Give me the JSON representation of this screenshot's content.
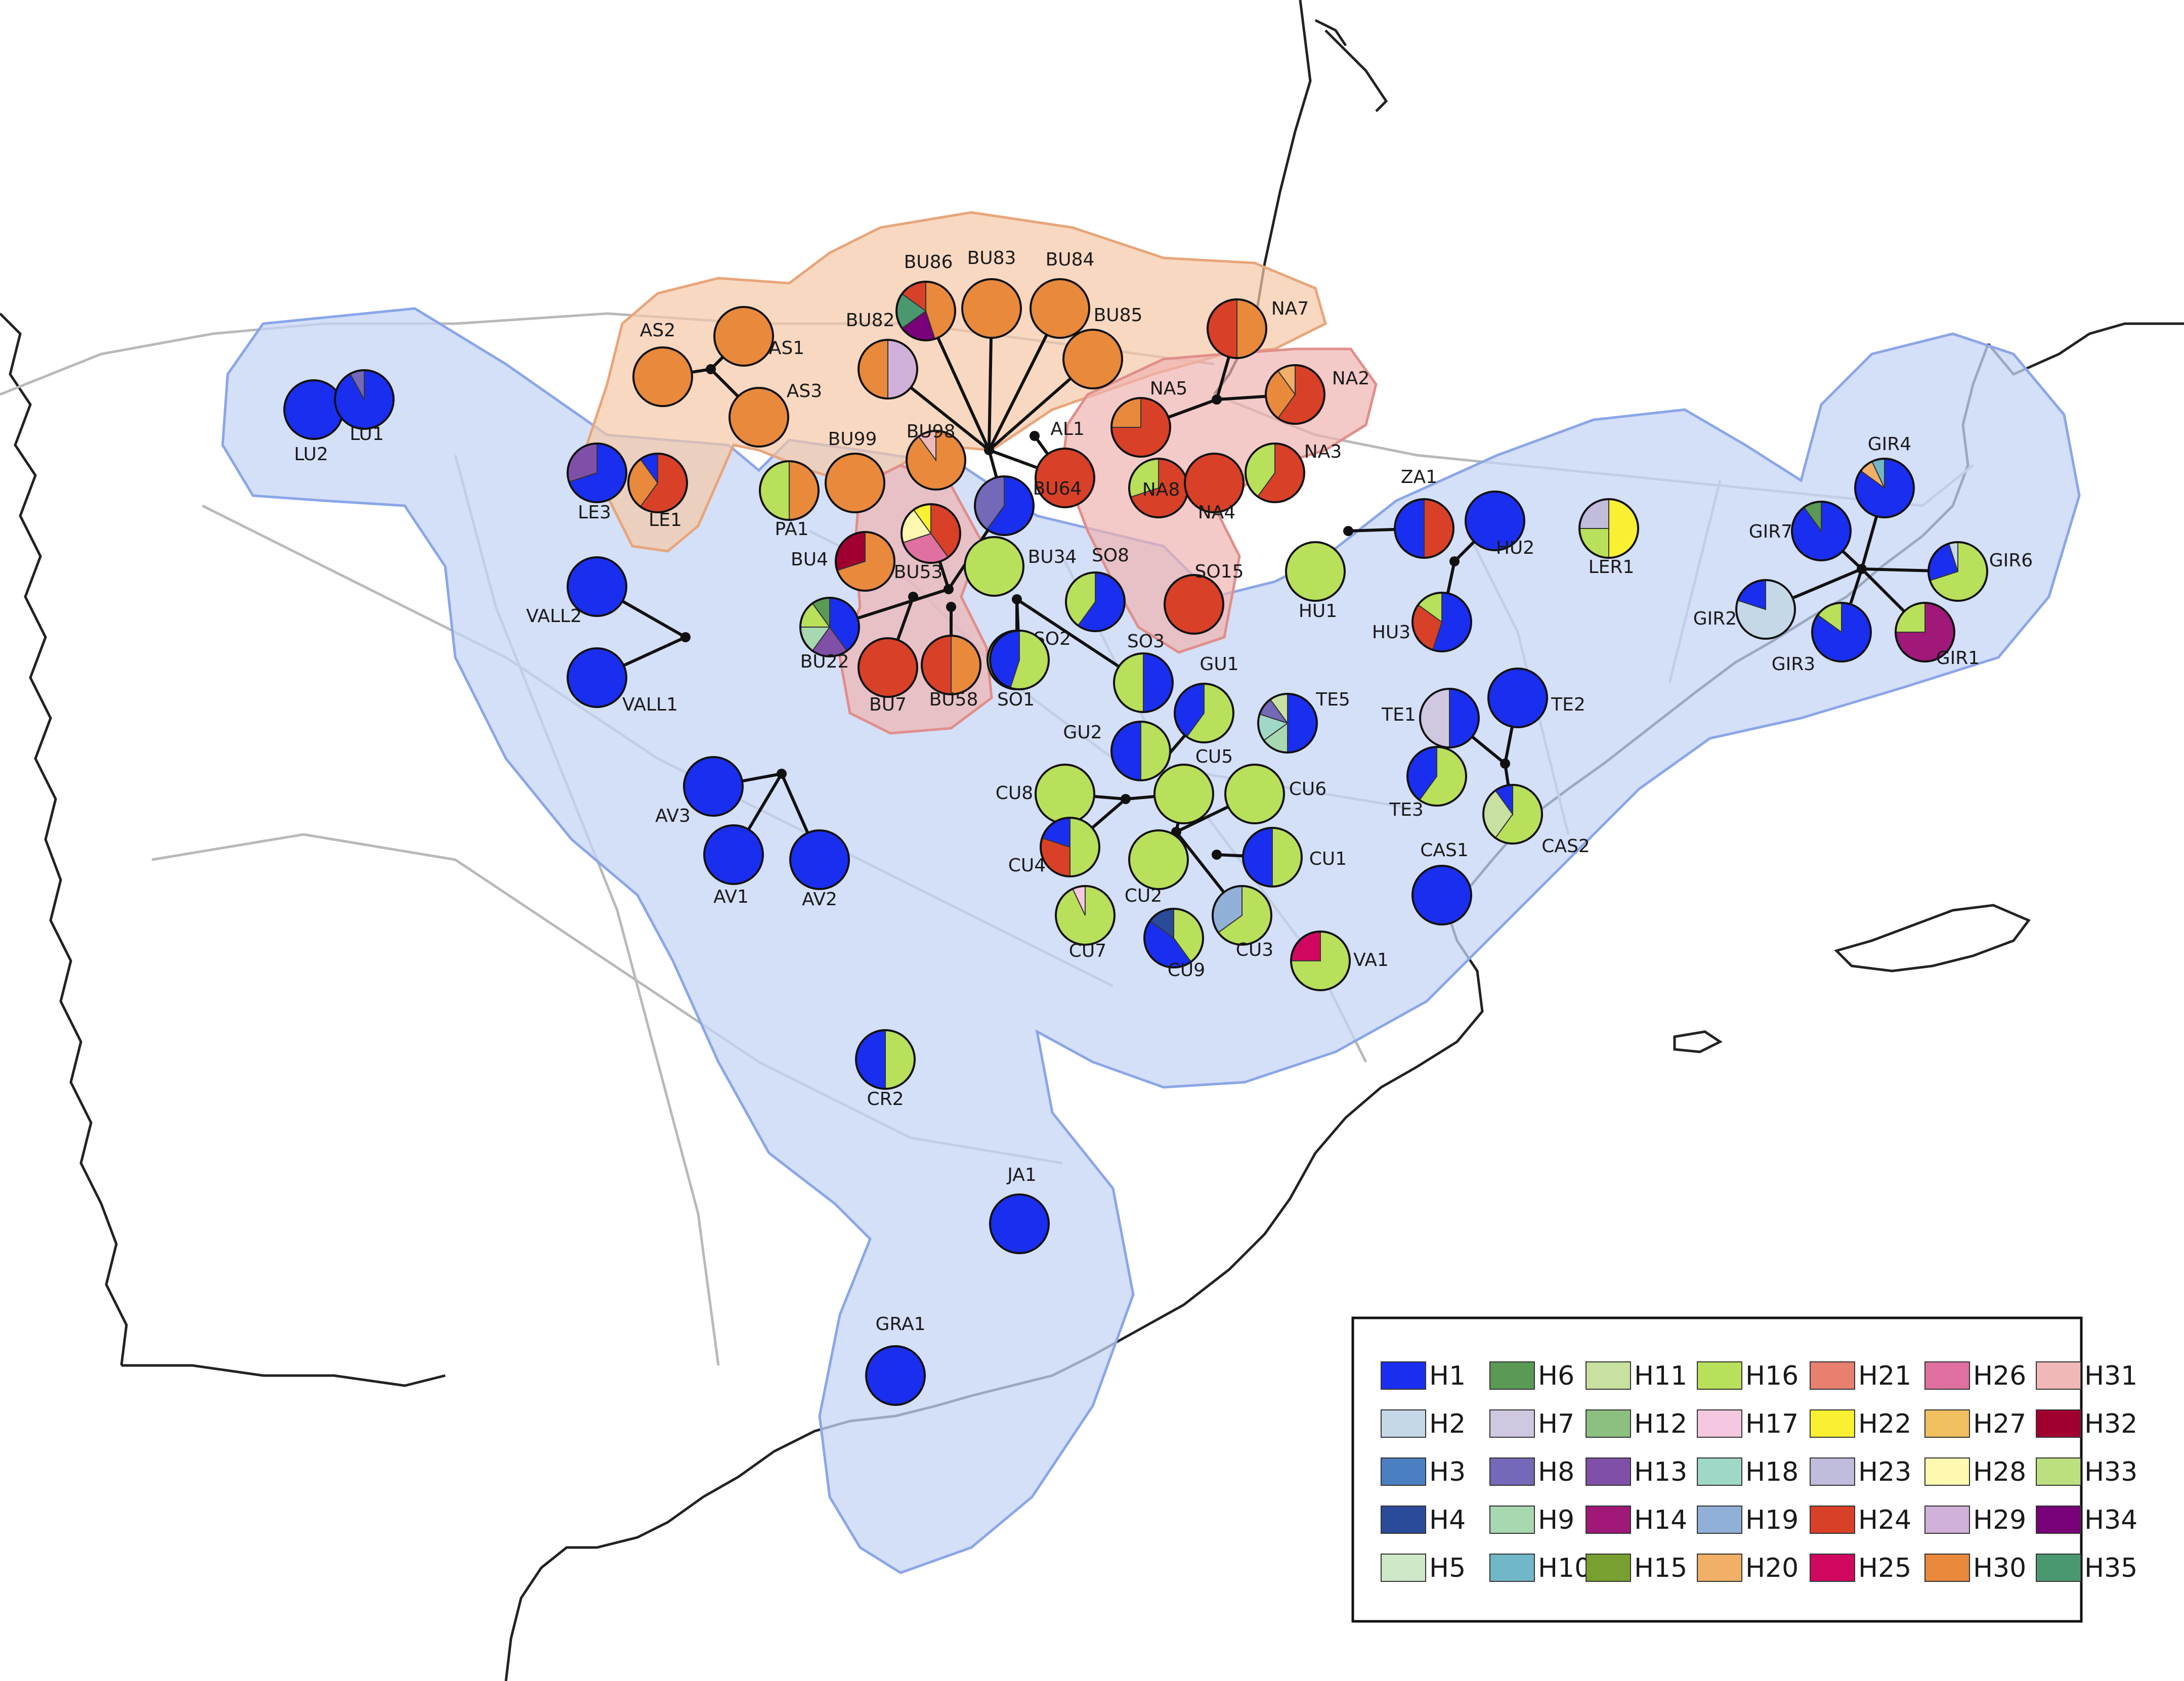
{
  "colors": {
    "H1": "#1a2ef0",
    "H2": "#c5d8e8",
    "H3": "#4a7fc1",
    "H4": "#2a4a9a",
    "H5": "#cfe8c7",
    "H6": "#5a9a55",
    "H7": "#cfc8e0",
    "H8": "#7468b8",
    "H9": "#a8d8b0",
    "H10": "#70b8c8",
    "H11": "#c8e0a0",
    "H12": "#8cc080",
    "H13": "#8050a8",
    "H14": "#a01878",
    "H15": "#78a030",
    "H16": "#b8e05a",
    "H17": "#f4c8e0",
    "H18": "#a0d8c8",
    "H19": "#90b0d8",
    "H20": "#f0b068",
    "H21": "#e88070",
    "H22": "#f8f030",
    "H23": "#c0bcdc",
    "H24": "#d84028",
    "H25": "#d00860",
    "H26": "#e070a0",
    "H27": "#f0c060",
    "H28": "#fff8b0",
    "H29": "#d0b0d8",
    "H30": "#e8893c",
    "H31": "#f0b8b8",
    "H32": "#a00030",
    "H33": "#bce080",
    "H34": "#780078",
    "H35": "#4a9870"
  },
  "legend": [
    "H1",
    "H2",
    "H3",
    "H4",
    "H5",
    "H6",
    "H7",
    "H8",
    "H9",
    "H10",
    "H11",
    "H12",
    "H13",
    "H14",
    "H15",
    "H16",
    "H17",
    "H18",
    "H19",
    "H20",
    "H21",
    "H22",
    "H23",
    "H24",
    "H25",
    "H26",
    "H27",
    "H28",
    "H29",
    "H30",
    "H31",
    "H32",
    "H33",
    "H34",
    "H35"
  ],
  "populations": [
    {
      "name": "LU2",
      "slices": [
        [
          "H1",
          1
        ]
      ]
    },
    {
      "name": "LU1",
      "slices": [
        [
          "H1",
          0.92
        ],
        [
          "H8",
          0.08
        ]
      ]
    },
    {
      "name": "AS2",
      "slices": [
        [
          "H30",
          1
        ]
      ]
    },
    {
      "name": "AS1",
      "slices": [
        [
          "H30",
          1
        ]
      ]
    },
    {
      "name": "AS3",
      "slices": [
        [
          "H30",
          1
        ]
      ]
    },
    {
      "name": "BU86",
      "slices": [
        [
          "H30",
          0.45
        ],
        [
          "H34",
          0.2
        ],
        [
          "H35",
          0.2
        ],
        [
          "H24",
          0.15
        ]
      ]
    },
    {
      "name": "BU83",
      "slices": [
        [
          "H30",
          1
        ]
      ]
    },
    {
      "name": "BU84",
      "slices": [
        [
          "H30",
          1
        ]
      ]
    },
    {
      "name": "BU82",
      "slices": [
        [
          "H29",
          0.5
        ],
        [
          "H30",
          0.5
        ]
      ]
    },
    {
      "name": "BU85",
      "slices": [
        [
          "H30",
          1
        ]
      ]
    },
    {
      "name": "NA7",
      "slices": [
        [
          "H30",
          0.5
        ],
        [
          "H24",
          0.5
        ]
      ]
    },
    {
      "name": "LE3",
      "slices": [
        [
          "H1",
          0.7
        ],
        [
          "H13",
          0.3
        ]
      ]
    },
    {
      "name": "LE1",
      "slices": [
        [
          "H24",
          0.6
        ],
        [
          "H30",
          0.3
        ],
        [
          "H1",
          0.1
        ]
      ]
    },
    {
      "name": "BU99",
      "slices": [
        [
          "H30",
          1
        ]
      ]
    },
    {
      "name": "BU98",
      "slices": [
        [
          "H30",
          0.9
        ],
        [
          "H31",
          0.1
        ]
      ]
    },
    {
      "name": "PA1",
      "slices": [
        [
          "H30",
          0.5
        ],
        [
          "H16",
          0.5
        ]
      ]
    },
    {
      "name": "AL1",
      "slices": [
        [
          "H24",
          1
        ]
      ]
    },
    {
      "name": "NA5",
      "slices": [
        [
          "H24",
          0.75
        ],
        [
          "H30",
          0.25
        ]
      ]
    },
    {
      "name": "NA2",
      "slices": [
        [
          "H24",
          0.6
        ],
        [
          "H30",
          0.3
        ],
        [
          "H20",
          0.1
        ]
      ]
    },
    {
      "name": "NA3",
      "slices": [
        [
          "H24",
          0.6
        ],
        [
          "H16",
          0.4
        ]
      ]
    },
    {
      "name": "NA8",
      "slices": [
        [
          "H24",
          0.7
        ],
        [
          "H16",
          0.3
        ]
      ]
    },
    {
      "name": "NA4",
      "slices": [
        [
          "H24",
          1
        ]
      ]
    },
    {
      "name": "BU64",
      "slices": [
        [
          "H1",
          0.6
        ],
        [
          "H8",
          0.4
        ]
      ]
    },
    {
      "name": "BU4",
      "slices": [
        [
          "H30",
          0.7
        ],
        [
          "H32",
          0.3
        ]
      ]
    },
    {
      "name": "BU53",
      "slices": [
        [
          "H24",
          0.4
        ],
        [
          "H26",
          0.3
        ],
        [
          "H28",
          0.2
        ],
        [
          "H22",
          0.1
        ]
      ]
    },
    {
      "name": "BU34",
      "slices": [
        [
          "H16",
          1
        ]
      ]
    },
    {
      "name": "SO8",
      "slices": [
        [
          "H1",
          0.6
        ],
        [
          "H16",
          0.4
        ]
      ]
    },
    {
      "name": "SO15",
      "slices": [
        [
          "H24",
          1
        ]
      ]
    },
    {
      "name": "ZA1",
      "slices": [
        [
          "H24",
          0.5
        ],
        [
          "H1",
          0.5
        ]
      ]
    },
    {
      "name": "HU2",
      "slices": [
        [
          "H1",
          1
        ]
      ]
    },
    {
      "name": "LER1",
      "slices": [
        [
          "H22",
          0.5
        ],
        [
          "H16",
          0.25
        ],
        [
          "H23",
          0.25
        ]
      ]
    },
    {
      "name": "HU1",
      "slices": [
        [
          "H16",
          1
        ]
      ]
    },
    {
      "name": "HU3",
      "slices": [
        [
          "H1",
          0.55
        ],
        [
          "H24",
          0.3
        ],
        [
          "H16",
          0.15
        ]
      ]
    },
    {
      "name": "GIR4",
      "slices": [
        [
          "H1",
          0.85
        ],
        [
          "H20",
          0.08
        ],
        [
          "H10",
          0.07
        ]
      ]
    },
    {
      "name": "GIR7",
      "slices": [
        [
          "H1",
          0.9
        ],
        [
          "H6",
          0.1
        ]
      ]
    },
    {
      "name": "GIR6",
      "slices": [
        [
          "H16",
          0.7
        ],
        [
          "H1",
          0.25
        ],
        [
          "H2",
          0.05
        ]
      ]
    },
    {
      "name": "GIR2",
      "slices": [
        [
          "H2",
          0.8
        ],
        [
          "H1",
          0.2
        ]
      ]
    },
    {
      "name": "GIR3",
      "slices": [
        [
          "H1",
          0.85
        ],
        [
          "H16",
          0.15
        ]
      ]
    },
    {
      "name": "GIR1",
      "slices": [
        [
          "H14",
          0.75
        ],
        [
          "H16",
          0.25
        ]
      ]
    },
    {
      "name": "VALL2",
      "slices": [
        [
          "H1",
          1
        ]
      ]
    },
    {
      "name": "VALL1",
      "slices": [
        [
          "H1",
          1
        ]
      ]
    },
    {
      "name": "BU22",
      "slices": [
        [
          "H1",
          0.4
        ],
        [
          "H13",
          0.2
        ],
        [
          "H9",
          0.15
        ],
        [
          "H16",
          0.15
        ],
        [
          "H6",
          0.1
        ]
      ]
    },
    {
      "name": "BU7",
      "slices": [
        [
          "H24",
          1
        ]
      ]
    },
    {
      "name": "BU58",
      "slices": [
        [
          "H30",
          0.5
        ],
        [
          "H24",
          0.5
        ]
      ]
    },
    {
      "name": "SO2",
      "slices": [
        [
          "H16",
          0.9
        ],
        [
          "H1",
          0.1
        ]
      ]
    },
    {
      "name": "SO1",
      "slices": [
        [
          "H16",
          0.55
        ],
        [
          "H1",
          0.45
        ]
      ]
    },
    {
      "name": "SO3",
      "slices": [
        [
          "H1",
          0.5
        ],
        [
          "H16",
          0.5
        ]
      ]
    },
    {
      "name": "GU1",
      "slices": [
        [
          "H16",
          0.6
        ],
        [
          "H1",
          0.4
        ]
      ]
    },
    {
      "name": "TE5",
      "slices": [
        [
          "H1",
          0.5
        ],
        [
          "H9",
          0.15
        ],
        [
          "H18",
          0.15
        ],
        [
          "H8",
          0.1
        ],
        [
          "H11",
          0.1
        ]
      ]
    },
    {
      "name": "TE1",
      "slices": [
        [
          "H1",
          0.5
        ],
        [
          "H7",
          0.5
        ]
      ]
    },
    {
      "name": "TE2",
      "slices": [
        [
          "H1",
          1
        ]
      ]
    },
    {
      "name": "GU2",
      "slices": [
        [
          "H16",
          0.5
        ],
        [
          "H1",
          0.5
        ]
      ]
    },
    {
      "name": "CU5",
      "slices": [
        [
          "H16",
          1
        ]
      ]
    },
    {
      "name": "CU6",
      "slices": [
        [
          "H16",
          1
        ]
      ]
    },
    {
      "name": "CU8",
      "slices": [
        [
          "H16",
          1
        ]
      ]
    },
    {
      "name": "TE3",
      "slices": [
        [
          "H16",
          0.6
        ],
        [
          "H1",
          0.4
        ]
      ]
    },
    {
      "name": "CAS2",
      "slices": [
        [
          "H16",
          0.6
        ],
        [
          "H11",
          0.3
        ],
        [
          "H1",
          0.1
        ]
      ]
    },
    {
      "name": "AV3",
      "slices": [
        [
          "H1",
          1
        ]
      ]
    },
    {
      "name": "AV1",
      "slices": [
        [
          "H1",
          1
        ]
      ]
    },
    {
      "name": "AV2",
      "slices": [
        [
          "H1",
          1
        ]
      ]
    },
    {
      "name": "CU4",
      "slices": [
        [
          "H16",
          0.5
        ],
        [
          "H24",
          0.3
        ],
        [
          "H1",
          0.2
        ]
      ]
    },
    {
      "name": "CU2",
      "slices": [
        [
          "H16",
          1
        ]
      ]
    },
    {
      "name": "CU1",
      "slices": [
        [
          "H16",
          0.5
        ],
        [
          "H1",
          0.5
        ]
      ]
    },
    {
      "name": "CAS1",
      "slices": [
        [
          "H1",
          1
        ]
      ]
    },
    {
      "name": "CU7",
      "slices": [
        [
          "H16",
          0.93
        ],
        [
          "H17",
          0.07
        ]
      ]
    },
    {
      "name": "CU9",
      "slices": [
        [
          "H16",
          0.4
        ],
        [
          "H1",
          0.45
        ],
        [
          "H4",
          0.15
        ]
      ]
    },
    {
      "name": "CU3",
      "slices": [
        [
          "H16",
          0.65
        ],
        [
          "H19",
          0.35
        ]
      ]
    },
    {
      "name": "VA1",
      "slices": [
        [
          "H16",
          0.75
        ],
        [
          "H25",
          0.25
        ]
      ]
    },
    {
      "name": "CR2",
      "slices": [
        [
          "H16",
          0.5
        ],
        [
          "H1",
          0.5
        ]
      ]
    },
    {
      "name": "JA1",
      "slices": [
        [
          "H1",
          1
        ]
      ]
    },
    {
      "name": "GRA1",
      "slices": [
        [
          "H1",
          1
        ]
      ]
    }
  ]
}
